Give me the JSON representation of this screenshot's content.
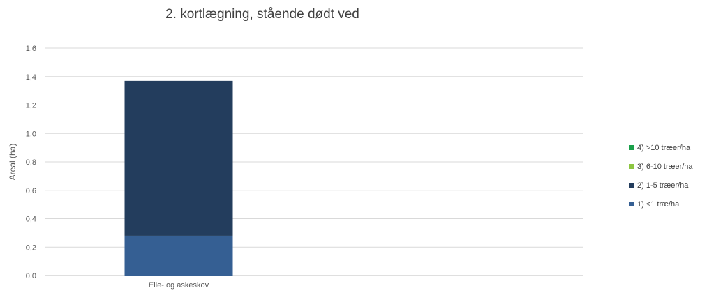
{
  "chart_data": {
    "type": "bar",
    "stacked": true,
    "title": "2. kortlægning, stående dødt ved",
    "xlabel": "",
    "ylabel": "Areal (ha)",
    "ylim": [
      0,
      1.6
    ],
    "ytick_step": 0.2,
    "yticks": [
      "0,0",
      "0,2",
      "0,4",
      "0,6",
      "0,8",
      "1,0",
      "1,2",
      "1,4",
      "1,6"
    ],
    "grid": true,
    "legend_position": "right",
    "categories": [
      "Elle- og askeskov"
    ],
    "series": [
      {
        "name": "1) <1 træ/ha",
        "values": [
          0.28
        ],
        "color": "#355f93"
      },
      {
        "name": "2) 1-5 træer/ha",
        "values": [
          1.09
        ],
        "color": "#233d5d"
      },
      {
        "name": "3) 6-10 træer/ha",
        "values": [
          0
        ],
        "color": "#8dc641"
      },
      {
        "name": "4) >10 træer/ha",
        "values": [
          0
        ],
        "color": "#1aa04a"
      }
    ],
    "legend_order": [
      3,
      2,
      1,
      0
    ]
  }
}
